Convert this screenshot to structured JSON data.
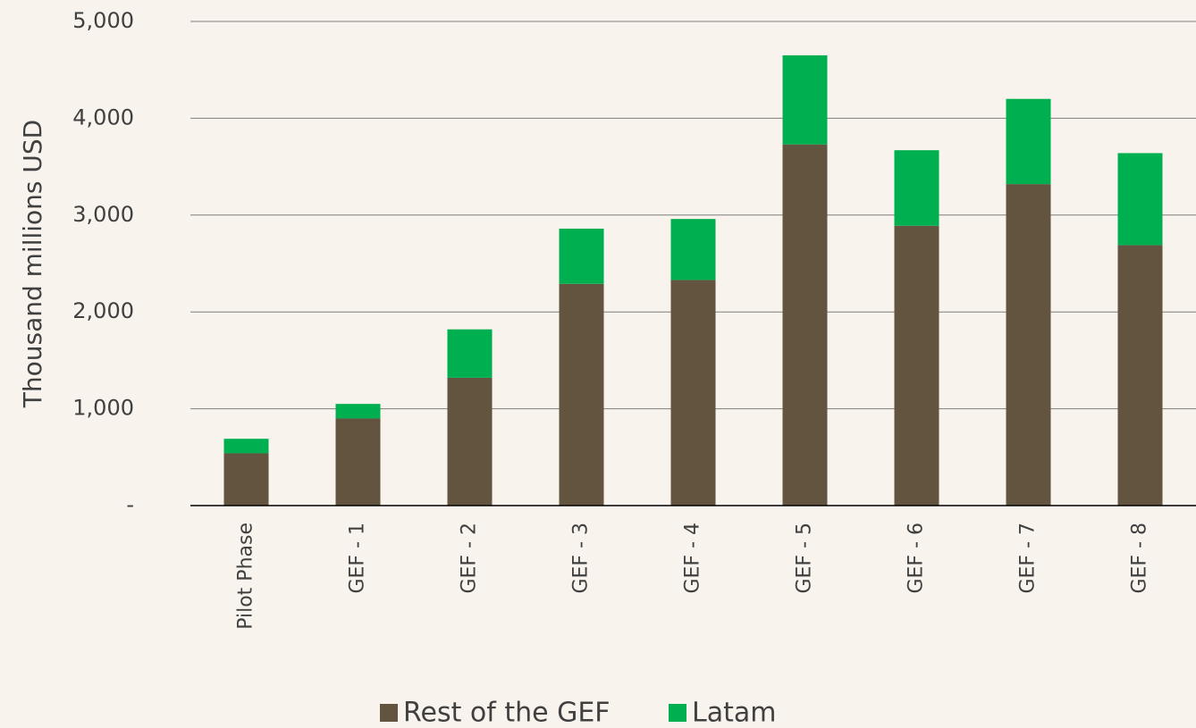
{
  "chart_data": {
    "type": "stacked_bar",
    "y_label": "Thousand millions USD",
    "categories": [
      "Pilot Phase",
      "GEF - 1",
      "GEF - 2",
      "GEF - 3",
      "GEF - 4",
      "GEF - 5",
      "GEF - 6",
      "GEF - 7",
      "GEF - 8"
    ],
    "series": [
      {
        "name": "Rest of the GEF",
        "color": "#62543f",
        "values": [
          540,
          900,
          1320,
          2290,
          2330,
          3730,
          2890,
          3320,
          2690
        ]
      },
      {
        "name": "Latam",
        "color": "#00b050",
        "values": [
          150,
          150,
          500,
          570,
          630,
          920,
          780,
          880,
          950
        ]
      }
    ],
    "ylim": [
      0,
      5000
    ],
    "yticks": [
      {
        "value": 0,
        "label": "-"
      },
      {
        "value": 1000,
        "label": "1,000"
      },
      {
        "value": 2000,
        "label": "2,000"
      },
      {
        "value": 3000,
        "label": "3,000"
      },
      {
        "value": 4000,
        "label": "4,000"
      },
      {
        "value": 5000,
        "label": "5,000"
      }
    ],
    "grid": true,
    "legend": "bottom"
  }
}
